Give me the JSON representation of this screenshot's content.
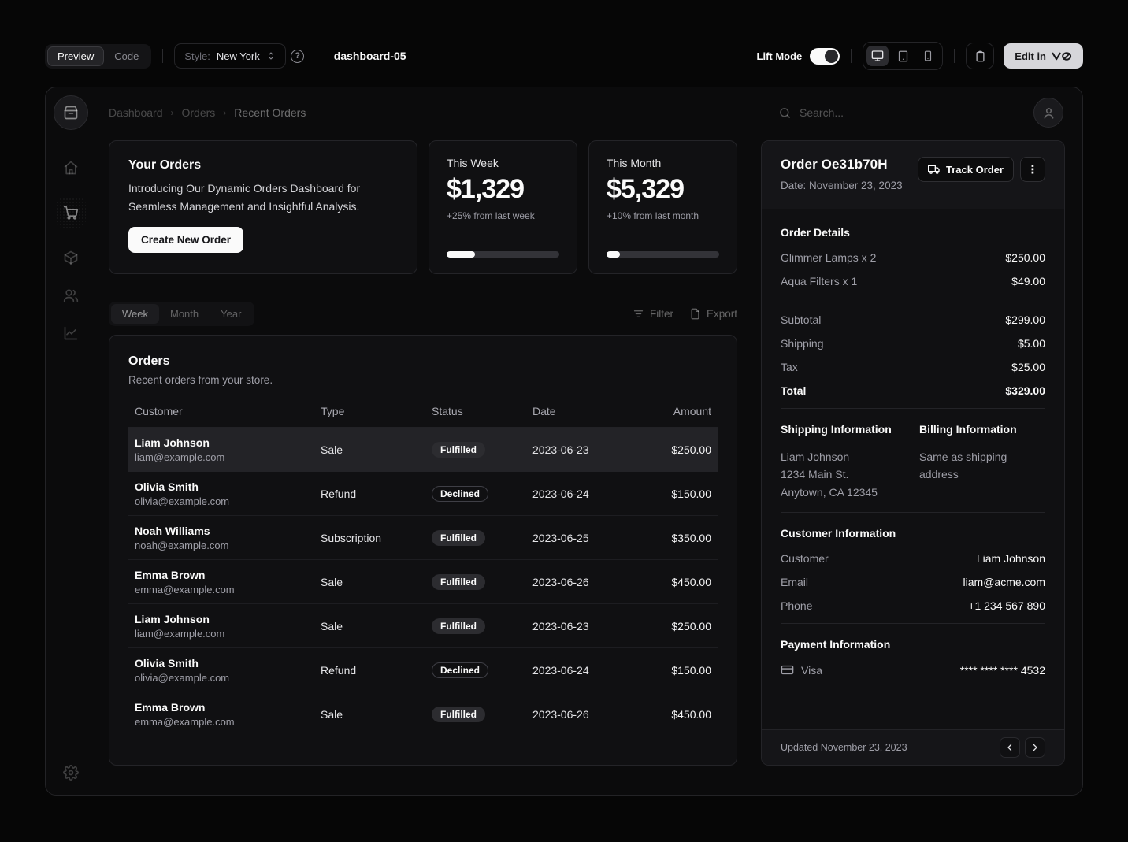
{
  "colors": {
    "background": "#060606",
    "card": "#101012",
    "border": "#242428",
    "accent": "#fafafa",
    "muted_text": "#9f9fa8"
  },
  "toolbar": {
    "view_tabs": [
      {
        "label": "Preview"
      },
      {
        "label": "Code"
      }
    ],
    "style_label": "Style:",
    "style_value": "New York",
    "component_name": "dashboard-05",
    "lift_mode_label": "Lift Mode",
    "edit_button_label": "Edit in"
  },
  "header": {
    "breadcrumb": [
      "Dashboard",
      "Orders",
      "Recent Orders"
    ],
    "search_placeholder": "Search..."
  },
  "hero": {
    "title": "Your Orders",
    "description": "Introducing Our Dynamic Orders Dashboard for Seamless Management and Insightful Analysis.",
    "button_label": "Create New Order"
  },
  "stats": [
    {
      "label": "This Week",
      "value": "$1,329",
      "delta": "+25% from last week",
      "progress_percent": 25
    },
    {
      "label": "This Month",
      "value": "$5,329",
      "delta": "+10% from last month",
      "progress_percent": 12
    }
  ],
  "tabs": {
    "items": [
      {
        "label": "Week"
      },
      {
        "label": "Month"
      },
      {
        "label": "Year"
      }
    ],
    "filter_label": "Filter",
    "export_label": "Export"
  },
  "orders": {
    "title": "Orders",
    "subtitle": "Recent orders from your store.",
    "columns": [
      "Customer",
      "Type",
      "Status",
      "Date",
      "Amount"
    ],
    "rows": [
      {
        "customer": "Liam Johnson",
        "email": "liam@example.com",
        "type": "Sale",
        "status": "Fulfilled",
        "date": "2023-06-23",
        "amount": "$250.00"
      },
      {
        "customer": "Olivia Smith",
        "email": "olivia@example.com",
        "type": "Refund",
        "status": "Declined",
        "date": "2023-06-24",
        "amount": "$150.00"
      },
      {
        "customer": "Noah Williams",
        "email": "noah@example.com",
        "type": "Subscription",
        "status": "Fulfilled",
        "date": "2023-06-25",
        "amount": "$350.00"
      },
      {
        "customer": "Emma Brown",
        "email": "emma@example.com",
        "type": "Sale",
        "status": "Fulfilled",
        "date": "2023-06-26",
        "amount": "$450.00"
      },
      {
        "customer": "Liam Johnson",
        "email": "liam@example.com",
        "type": "Sale",
        "status": "Fulfilled",
        "date": "2023-06-23",
        "amount": "$250.00"
      },
      {
        "customer": "Olivia Smith",
        "email": "olivia@example.com",
        "type": "Refund",
        "status": "Declined",
        "date": "2023-06-24",
        "amount": "$150.00"
      },
      {
        "customer": "Emma Brown",
        "email": "emma@example.com",
        "type": "Sale",
        "status": "Fulfilled",
        "date": "2023-06-26",
        "amount": "$450.00"
      }
    ]
  },
  "order_panel": {
    "title": "Order Oe31b70H",
    "date_line": "Date: November 23, 2023",
    "track_button_label": "Track Order",
    "details_title": "Order Details",
    "items": [
      {
        "name": "Glimmer Lamps x 2",
        "price": "$250.00"
      },
      {
        "name": "Aqua Filters x 1",
        "price": "$49.00"
      }
    ],
    "summary": [
      {
        "label": "Subtotal",
        "value": "$299.00"
      },
      {
        "label": "Shipping",
        "value": "$5.00"
      },
      {
        "label": "Tax",
        "value": "$25.00"
      },
      {
        "label": "Total",
        "value": "$329.00"
      }
    ],
    "shipping_title": "Shipping Information",
    "shipping_lines": [
      "Liam Johnson",
      "1234 Main St.",
      "Anytown, CA 12345"
    ],
    "billing_title": "Billing Information",
    "billing_text": "Same as shipping address",
    "customer_title": "Customer Information",
    "customer_rows": [
      {
        "label": "Customer",
        "value": "Liam Johnson"
      },
      {
        "label": "Email",
        "value": "liam@acme.com"
      },
      {
        "label": "Phone",
        "value": "+1 234 567 890"
      }
    ],
    "payment_title": "Payment Information",
    "payment_method": "Visa",
    "payment_number": "**** **** **** 4532",
    "footer_text": "Updated November 23, 2023"
  }
}
